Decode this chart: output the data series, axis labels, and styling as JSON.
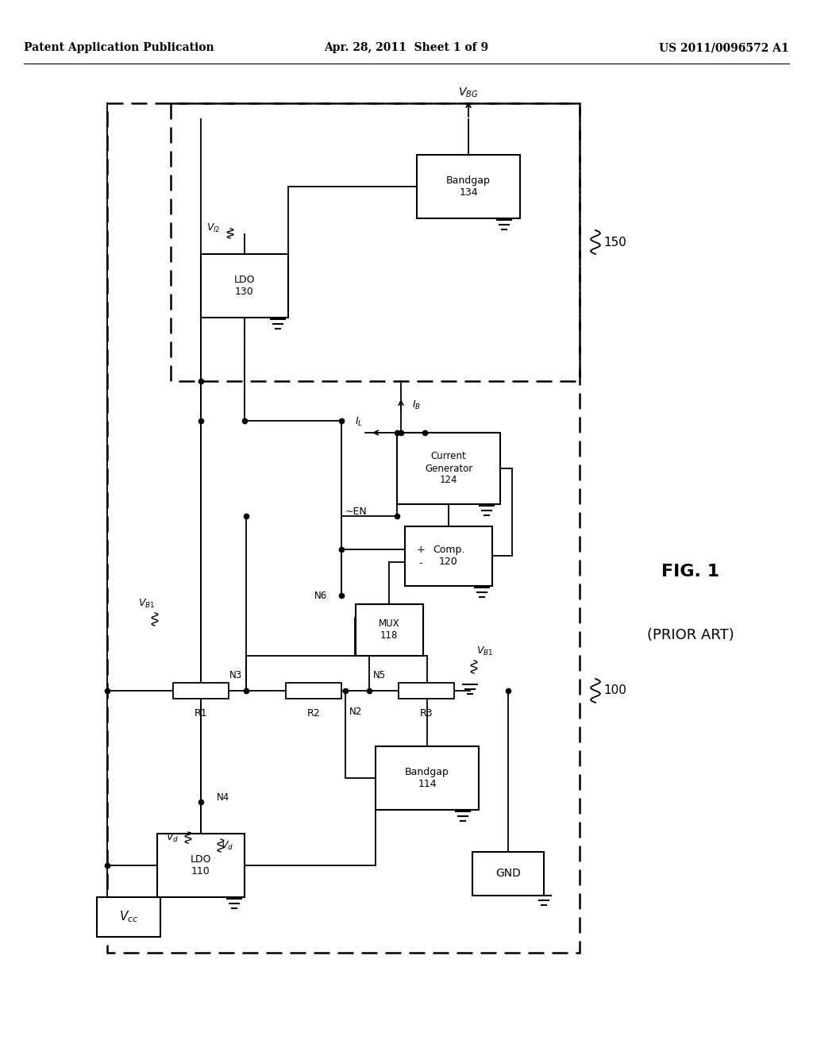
{
  "page_header_left": "Patent Application Publication",
  "page_header_center": "Apr. 28, 2011  Sheet 1 of 9",
  "page_header_right": "US 2011/0096572 A1",
  "fig_label": "FIG. 1",
  "fig_sublabel": "(PRIOR ART)",
  "bg_color": "#ffffff"
}
